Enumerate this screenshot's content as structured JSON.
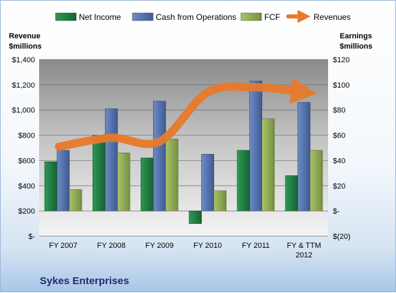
{
  "chart_data": {
    "type": "bar",
    "title": "Sykes Enterprises",
    "categories": [
      "FY 2007",
      "FY 2008",
      "FY 2009",
      "FY 2010",
      "FY 2011",
      "FY & TTM 2012"
    ],
    "left_axis": {
      "label_line1": "Revenue",
      "label_line2": "$millions",
      "ylim": [
        0,
        1400
      ],
      "ticks": [
        0,
        200,
        400,
        600,
        800,
        1000,
        1200,
        1400
      ],
      "tick_labels": [
        "$-",
        "$200",
        "$400",
        "$600",
        "$800",
        "$1,000",
        "$1,200",
        "$1,400"
      ]
    },
    "right_axis": {
      "label_line1": "Earnings",
      "label_line2": "$millions",
      "ylim": [
        -20,
        120
      ],
      "ticks": [
        -20,
        0,
        20,
        40,
        60,
        80,
        100,
        120
      ],
      "tick_labels": [
        "$(20)",
        "$-",
        "$20",
        "$40",
        "$60",
        "$80",
        "$100",
        "$120"
      ]
    },
    "series": [
      {
        "name": "Net Income",
        "axis": "right",
        "kind": "bar",
        "color": "#1f7a3d",
        "values": [
          39,
          60,
          42,
          -10,
          48,
          28
        ]
      },
      {
        "name": "Cash from Operations",
        "axis": "right",
        "kind": "bar",
        "color": "#4f6fa8",
        "values": [
          48,
          81,
          87,
          45,
          103,
          86
        ]
      },
      {
        "name": "FCF",
        "axis": "right",
        "kind": "bar",
        "color": "#8faa52",
        "values": [
          17,
          46,
          57,
          16,
          73,
          48
        ]
      },
      {
        "name": "Revenues",
        "axis": "left",
        "kind": "line",
        "color": "#e87a2c",
        "values": [
          710,
          780,
          750,
          1140,
          1180,
          1140
        ]
      }
    ],
    "grid": true,
    "legend_position": "top"
  }
}
